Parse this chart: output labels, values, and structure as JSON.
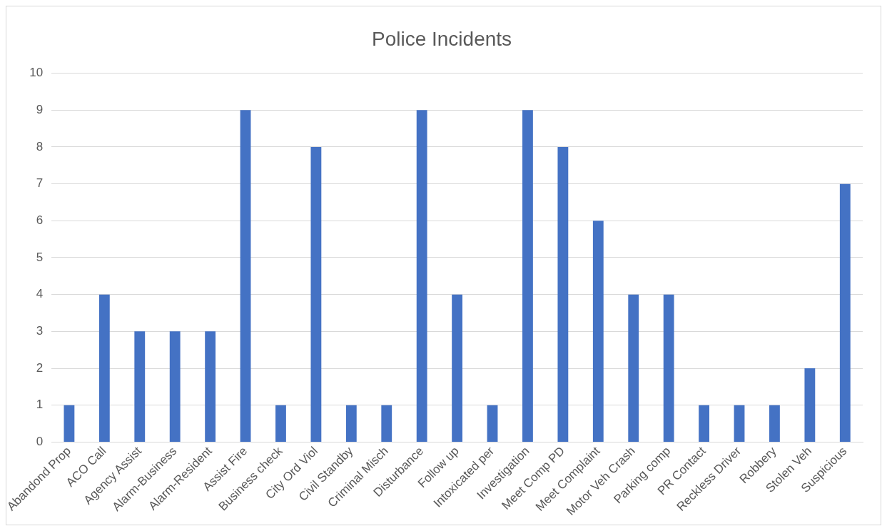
{
  "chart_data": {
    "type": "bar",
    "title": "Police Incidents",
    "categories": [
      "Abandond Prop",
      "ACO Call",
      "Agency Assist",
      "Alarm-Business",
      "Alarm-Resident",
      "Assist Fire",
      "Business check",
      "City Ord Viol",
      "Civil Standby",
      "Criminal Misch",
      "Disturbance",
      "Follow up",
      "Intoxicated per",
      "Investigation",
      "Meet Comp PD",
      "Meet Complaint",
      "Motor Veh Crash",
      "Parking comp",
      "PR Contact",
      "Reckless Driver",
      "Robbery",
      "Stolen Veh",
      "Suspicious"
    ],
    "values": [
      1,
      4,
      3,
      3,
      3,
      9,
      1,
      8,
      1,
      1,
      9,
      4,
      1,
      9,
      8,
      6,
      4,
      4,
      1,
      1,
      1,
      2,
      7
    ],
    "color": "#4472c4",
    "ylim": [
      0,
      10
    ],
    "yticks": [
      0,
      1,
      2,
      3,
      4,
      5,
      6,
      7,
      8,
      9,
      10
    ],
    "grid": "y",
    "legend": false
  }
}
